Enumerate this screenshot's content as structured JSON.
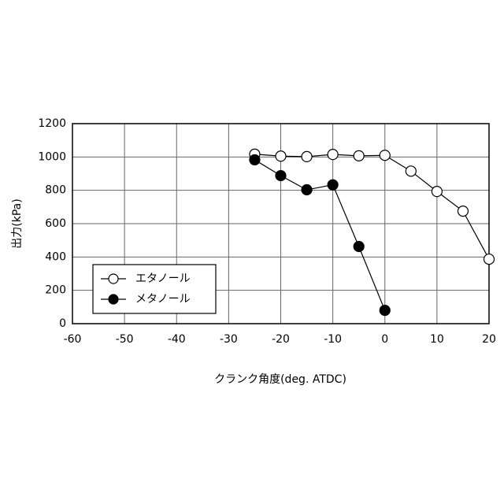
{
  "chart_data": {
    "type": "line",
    "xlabel": "クランク角度(deg. ATDC)",
    "ylabel": "出力(kPa)",
    "x": [
      -25,
      -20,
      -15,
      -10,
      -5,
      0,
      5,
      10,
      15,
      20
    ],
    "series": [
      {
        "name": "エタノール",
        "color": "#ffffff",
        "values": [
          1017,
          1005,
          1002,
          1015,
          1007,
          1010,
          915,
          793,
          675,
          387
        ]
      },
      {
        "name": "メタノール",
        "color": "#000000",
        "values": [
          983,
          888,
          803,
          833,
          463,
          80,
          null,
          null,
          null,
          null
        ]
      }
    ],
    "xlim": [
      -60,
      20
    ],
    "xticks": [
      -60,
      -50,
      -40,
      -30,
      -20,
      -10,
      0,
      10,
      20
    ],
    "ylim": [
      0,
      1200
    ],
    "yticks": [
      0,
      200,
      400,
      600,
      800,
      1000,
      1200
    ],
    "grid": true,
    "legend": "lower left"
  }
}
